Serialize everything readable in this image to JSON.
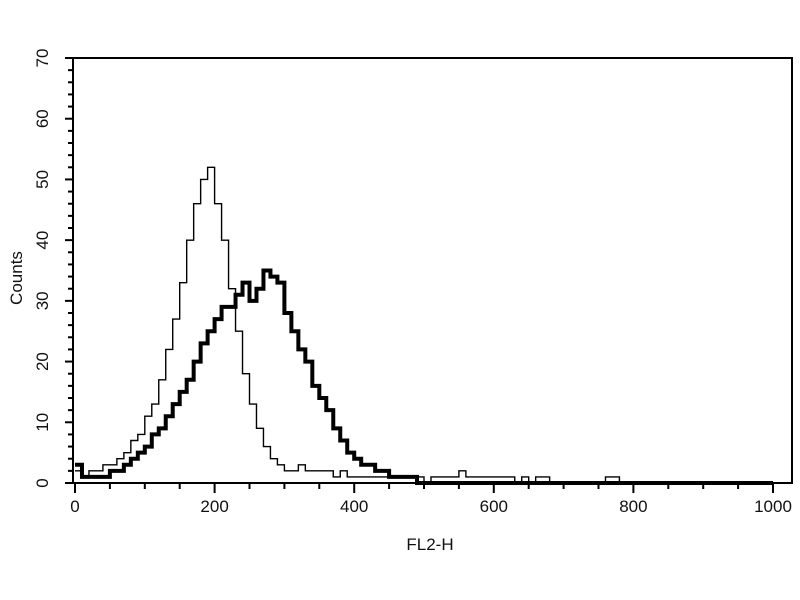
{
  "chart_data": {
    "type": "line",
    "title": "",
    "xlabel": "FL2-H",
    "ylabel": "Counts",
    "xlim": [
      0,
      1000
    ],
    "ylim": [
      0,
      70
    ],
    "xticks": [
      "0",
      "200",
      "400",
      "600",
      "800",
      "1000"
    ],
    "yticks": [
      "0",
      "10",
      "20",
      "30",
      "40",
      "50",
      "60",
      "70"
    ],
    "grid": false,
    "x": [
      0,
      10,
      20,
      30,
      40,
      50,
      60,
      70,
      80,
      90,
      100,
      110,
      120,
      130,
      140,
      150,
      160,
      170,
      180,
      190,
      200,
      210,
      220,
      230,
      240,
      250,
      260,
      270,
      280,
      290,
      300,
      310,
      320,
      330,
      340,
      350,
      360,
      370,
      380,
      390,
      400,
      410,
      420,
      430,
      440,
      450,
      460,
      470,
      480,
      490,
      500,
      510,
      520,
      530,
      540,
      550,
      560,
      570,
      580,
      590,
      600,
      610,
      620,
      630,
      640,
      650,
      660,
      670,
      680,
      690,
      700,
      710,
      720,
      730,
      740,
      750,
      760,
      770,
      780,
      790,
      800,
      810,
      820,
      830,
      840,
      850,
      860,
      870,
      880,
      890,
      900,
      910,
      920,
      930,
      940,
      950,
      960,
      970,
      980,
      990,
      1000
    ],
    "series": [
      {
        "style": "thin",
        "values": [
          2,
          1,
          2,
          2,
          3,
          3,
          4,
          5,
          7,
          8,
          11,
          13,
          17,
          22,
          27,
          33,
          40,
          46,
          50,
          52,
          46,
          40,
          32,
          25,
          18,
          13,
          9,
          6,
          4,
          3,
          2,
          2,
          3,
          2,
          2,
          2,
          2,
          1,
          2,
          1,
          1,
          1,
          1,
          1,
          1,
          1,
          1,
          1,
          1,
          1,
          0,
          1,
          1,
          1,
          1,
          2,
          1,
          1,
          1,
          1,
          1,
          1,
          1,
          0,
          1,
          0,
          1,
          1,
          0,
          0,
          0,
          0,
          0,
          0,
          0,
          0,
          1,
          1,
          0,
          0,
          0,
          0,
          0,
          0,
          0,
          0,
          0,
          0,
          0,
          0,
          0,
          0,
          0,
          0,
          0,
          0,
          0,
          0,
          0,
          0,
          0
        ]
      },
      {
        "style": "thick",
        "values": [
          3,
          1,
          1,
          1,
          1,
          2,
          2,
          3,
          4,
          5,
          6,
          8,
          9,
          11,
          13,
          15,
          17,
          20,
          23,
          25,
          27,
          29,
          29,
          31,
          33,
          30,
          32,
          35,
          34,
          33,
          28,
          25,
          22,
          20,
          16,
          14,
          12,
          9,
          7,
          5,
          4,
          3,
          3,
          2,
          2,
          1,
          1,
          1,
          1,
          0,
          0,
          0,
          0,
          0,
          0,
          0,
          0,
          0,
          0,
          0,
          0,
          0,
          0,
          0,
          0,
          0,
          0,
          0,
          0,
          0,
          0,
          0,
          0,
          0,
          0,
          0,
          0,
          0,
          0,
          0,
          0,
          0,
          0,
          0,
          0,
          0,
          0,
          0,
          0,
          0,
          0,
          0,
          0,
          0,
          0,
          0,
          0,
          0,
          0,
          0,
          0
        ]
      }
    ]
  }
}
